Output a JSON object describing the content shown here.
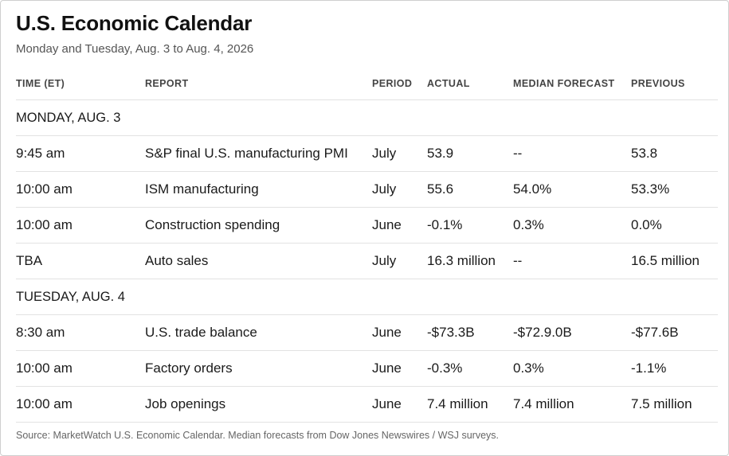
{
  "title": "U.S. Economic Calendar",
  "subtitle": "Monday and Tuesday, Aug. 3 to Aug. 4, 2026",
  "columns": {
    "time": "TIME (ET)",
    "report": "REPORT",
    "period": "PERIOD",
    "actual": "ACTUAL",
    "median": "MEDIAN FORECAST",
    "previous": "PREVIOUS"
  },
  "days": [
    {
      "label": "MONDAY, AUG. 3",
      "rows": [
        {
          "time": "9:45 am",
          "report": "S&P final U.S. manufacturing PMI",
          "period": "July",
          "actual": "53.9",
          "median": "--",
          "previous": "53.8"
        },
        {
          "time": "10:00 am",
          "report": "ISM manufacturing",
          "period": "July",
          "actual": "55.6",
          "median": "54.0%",
          "previous": "53.3%"
        },
        {
          "time": "10:00 am",
          "report": "Construction spending",
          "period": "June",
          "actual": "-0.1%",
          "median": "0.3%",
          "previous": "0.0%"
        },
        {
          "time": "TBA",
          "report": "Auto sales",
          "period": "July",
          "actual": "16.3 million",
          "median": "--",
          "previous": "16.5 million"
        }
      ]
    },
    {
      "label": "TUESDAY, AUG. 4",
      "rows": [
        {
          "time": "8:30 am",
          "report": "U.S. trade balance",
          "period": "June",
          "actual": "-$73.3B",
          "median": "-$72.9.0B",
          "previous": "-$77.6B"
        },
        {
          "time": "10:00 am",
          "report": "Factory orders",
          "period": "June",
          "actual": "-0.3%",
          "median": "0.3%",
          "previous": "-1.1%"
        },
        {
          "time": "10:00 am",
          "report": "Job openings",
          "period": "June",
          "actual": "7.4 million",
          "median": "7.4 million",
          "previous": "7.5 million"
        }
      ]
    }
  ],
  "source": "Source: MarketWatch U.S. Economic Calendar. Median forecasts from Dow Jones Newswires / WSJ surveys."
}
